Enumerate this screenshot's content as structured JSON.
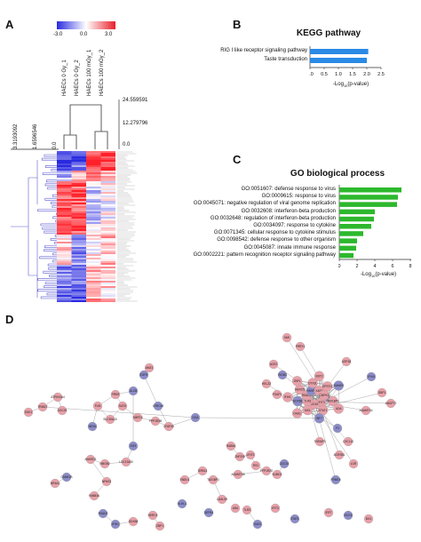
{
  "panels": {
    "a": "A",
    "b": "B",
    "c": "C",
    "d": "D"
  },
  "heatmap": {
    "color_scale_ticks": [
      "-3.0",
      "0.0",
      "3.0"
    ],
    "columns": [
      "HAECs 0 Gy_1",
      "HAECs 0 Gy_2",
      "HAECs 100 mGy_1",
      "HAECs 100 mGy_2"
    ],
    "col_dendro_ticks": [
      "24.559591",
      "12.279796",
      "0.0"
    ],
    "row_dendro_ticks": [
      "3.3193092",
      "1.6596546",
      "0.0"
    ],
    "colors": {
      "low": "#2a2ae0",
      "mid": "#ffffff",
      "high": "#e8202a"
    }
  },
  "chart_data": [
    {
      "type": "bar",
      "orientation": "horizontal",
      "title": "KEGG pathway",
      "categories": [
        "RIG I like receptor signaling pathway",
        "Taste transduction"
      ],
      "values": [
        2.05,
        2.0
      ],
      "xlabel_pre": "-Log",
      "xlabel_sub": "10",
      "xlabel_post": "(p-value)",
      "xlim": [
        0,
        2.5
      ],
      "xticks": [
        "0.0",
        "0.5",
        "1.0",
        "1.5",
        "2.0",
        "2.5"
      ],
      "color": "#2a8ae6"
    },
    {
      "type": "bar",
      "orientation": "horizontal",
      "title": "GO biological process",
      "categories": [
        "GO:0051607: defense response to virus",
        "GO:0009615: response to virus",
        "GO:0045071: negative regulation of viral genome replication",
        "GO:0032608: interferon-beta production",
        "GO:0032648: regulation of interferon-beta production",
        "GO:0034097: response to cytokine",
        "GO:0071345: cellular response to cytokine stimulus",
        "GO:0098542: defense response to other organism",
        "GO:0045087: innate immune response",
        "GO:0002221: pattern recognition receptor signaling pathway"
      ],
      "values": [
        7.0,
        6.6,
        6.5,
        4.0,
        3.9,
        3.6,
        2.7,
        2.0,
        1.9,
        1.6
      ],
      "xlabel_pre": "-Log",
      "xlabel_sub": "10",
      "xlabel_post": "(p-value)",
      "xlim": [
        0,
        8
      ],
      "xticks": [
        "0",
        "2",
        "4",
        "6",
        "8"
      ],
      "color": "#2db82d"
    }
  ],
  "network": {
    "up_color": "#e8a0a8",
    "down_color": "#8c8cc8",
    "labels": [
      "LGALS9",
      "TAX1BP1",
      "ADA",
      "IFIT3",
      "STAT1",
      "IRF7",
      "ISG15",
      "MX1",
      "OAS1",
      "TLR3",
      "DDX58",
      "IFIH1",
      "RSAD2",
      "HERC5",
      "ZBP1",
      "PARP9",
      "DTX3L",
      "BST2",
      "XAF1",
      "EPSTI1",
      "SAMD9",
      "CMPK2",
      "NMI",
      "PRRY1",
      "ACE2",
      "RIGB1",
      "PGAP1",
      "HELZ2",
      "USP18",
      "IFI44",
      "GBP1",
      "ADAMTS4",
      "ANGPT2",
      "F2",
      "TNFAIP3",
      "CXCL10",
      "LGR",
      "FRMD5",
      "ACRSB1",
      "FUN",
      "PRKR",
      "KAT5",
      "SLC30A10",
      "NEXN",
      "ALCB",
      "SMPD3",
      "PPP1R3B",
      "CFAP45",
      "LRRC48",
      "EGFR",
      "AMZ1",
      "DGA",
      "EIF4",
      "LOC13430",
      "HMGB2",
      "ANKRD1",
      "NPAS3",
      "FAM83A",
      "ATP6V0A4",
      "TRIM27",
      "SGK1",
      "DGC29",
      "CAMK2B",
      "NR4A1",
      "GRB14",
      "KLHL1",
      "DEFB4",
      "ENDU1",
      "RAB5A",
      "ZNF205",
      "LRIT2",
      "RS1",
      "PPP1R2D",
      "ADAMTS8",
      "CDC34",
      "SUMO1"
    ]
  }
}
